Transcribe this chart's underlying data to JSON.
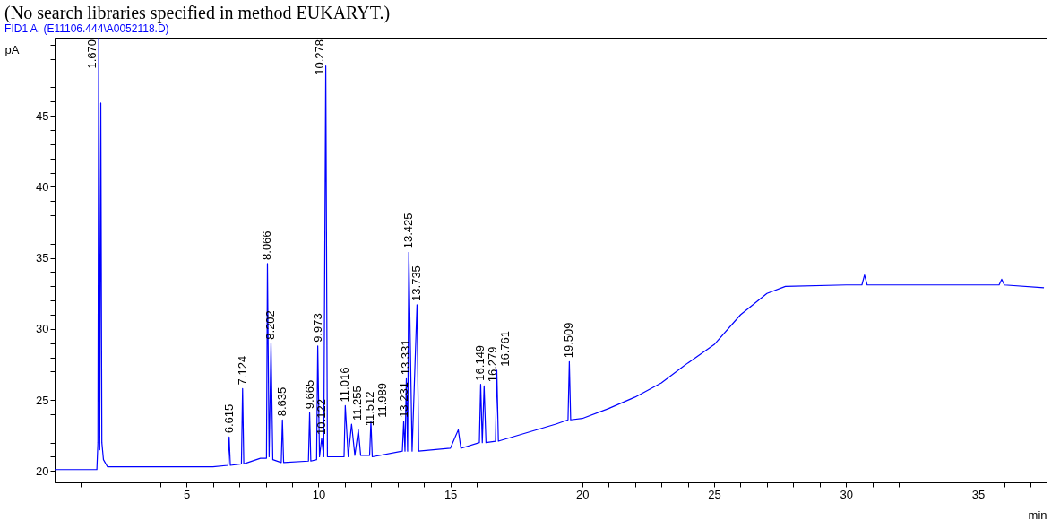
{
  "chart_data": {
    "type": "line",
    "title": "(No search libraries specified in method EUKARYT.)",
    "subtitle": "FID1 A,  (E11106.444\\A0052118.D)",
    "xlabel": "min",
    "ylabel": "pA",
    "x": [
      0,
      1.6,
      1.64,
      1.67,
      1.71,
      1.75,
      1.79,
      1.85,
      2.0,
      3.0,
      4.0,
      5.0,
      6.0,
      6.57,
      6.615,
      6.66,
      7.08,
      7.124,
      7.17,
      7.8,
      8.03,
      8.066,
      8.13,
      8.202,
      8.27,
      8.59,
      8.635,
      8.68,
      9.62,
      9.665,
      9.71,
      9.93,
      9.973,
      10.04,
      10.122,
      10.2,
      10.278,
      10.34,
      10.97,
      11.016,
      11.13,
      11.255,
      11.38,
      11.512,
      11.6,
      11.94,
      11.989,
      12.04,
      13.18,
      13.231,
      13.28,
      13.331,
      13.38,
      13.425,
      13.55,
      13.735,
      13.8,
      15.0,
      15.3,
      15.4,
      16.1,
      16.149,
      16.21,
      16.279,
      16.35,
      16.71,
      16.761,
      16.82,
      19.0,
      19.46,
      19.509,
      19.56,
      20.0,
      21.0,
      22.0,
      23.0,
      24.0,
      25.0,
      26.0,
      27.0,
      27.7,
      30.0,
      30.6,
      30.7,
      30.8,
      35.8,
      35.9,
      36.0,
      37.5
    ],
    "series": [
      {
        "color": "#0000ff",
        "values": [
          20.1,
          20.1,
          22.0,
          50.5,
          21.5,
          45.9,
          22.0,
          20.8,
          20.3,
          20.3,
          20.3,
          20.3,
          20.3,
          20.4,
          22.4,
          20.4,
          20.5,
          25.8,
          20.5,
          20.9,
          20.9,
          34.6,
          21.0,
          29.0,
          20.8,
          20.6,
          23.6,
          20.6,
          20.7,
          24.1,
          20.7,
          20.8,
          28.8,
          21.0,
          22.3,
          21.0,
          48.5,
          21.0,
          21.0,
          24.6,
          21.0,
          23.3,
          21.1,
          22.9,
          21.1,
          21.1,
          23.5,
          21.0,
          21.4,
          23.5,
          21.4,
          26.5,
          21.4,
          35.4,
          21.4,
          31.7,
          21.4,
          21.6,
          22.9,
          21.6,
          22.0,
          26.1,
          22.0,
          26.0,
          22.0,
          22.1,
          27.1,
          22.1,
          23.3,
          23.6,
          27.7,
          23.6,
          23.7,
          24.4,
          25.2,
          26.2,
          27.6,
          28.9,
          31.0,
          32.5,
          33.0,
          33.1,
          33.1,
          33.8,
          33.1,
          33.1,
          33.5,
          33.1,
          32.9
        ]
      }
    ],
    "xlim": [
      0,
      37.6
    ],
    "ylim": [
      19.2,
      50.5
    ],
    "xticks": [
      {
        "value": 1,
        "label": null
      },
      {
        "value": 2,
        "label": null
      },
      {
        "value": 3,
        "label": null
      },
      {
        "value": 4,
        "label": null
      },
      5,
      {
        "value": 6,
        "label": null
      },
      {
        "value": 7,
        "label": null
      },
      {
        "value": 8,
        "label": null
      },
      {
        "value": 9,
        "label": null
      },
      10,
      {
        "value": 11,
        "label": null
      },
      {
        "value": 12,
        "label": null
      },
      {
        "value": 13,
        "label": null
      },
      {
        "value": 14,
        "label": null
      },
      15,
      {
        "value": 16,
        "label": null
      },
      {
        "value": 17,
        "label": null
      },
      {
        "value": 18,
        "label": null
      },
      {
        "value": 19,
        "label": null
      },
      20,
      {
        "value": 21,
        "label": null
      },
      {
        "value": 22,
        "label": null
      },
      {
        "value": 23,
        "label": null
      },
      {
        "value": 24,
        "label": null
      },
      25,
      {
        "value": 26,
        "label": null
      },
      {
        "value": 27,
        "label": null
      },
      {
        "value": 28,
        "label": null
      },
      {
        "value": 29,
        "label": null
      },
      30,
      {
        "value": 31,
        "label": null
      },
      {
        "value": 32,
        "label": null
      },
      {
        "value": 33,
        "label": null
      },
      {
        "value": 34,
        "label": null
      },
      35,
      {
        "value": 36,
        "label": null
      },
      {
        "value": 37,
        "label": null
      }
    ],
    "yticks": [
      20,
      {
        "value": 21,
        "label": null
      },
      {
        "value": 22,
        "label": null
      },
      {
        "value": 23,
        "label": null
      },
      {
        "value": 24,
        "label": null
      },
      25,
      {
        "value": 26,
        "label": null
      },
      {
        "value": 27,
        "label": null
      },
      {
        "value": 28,
        "label": null
      },
      {
        "value": 29,
        "label": null
      },
      30,
      {
        "value": 31,
        "label": null
      },
      {
        "value": 32,
        "label": null
      },
      {
        "value": 33,
        "label": null
      },
      {
        "value": 34,
        "label": null
      },
      35,
      {
        "value": 36,
        "label": null
      },
      {
        "value": 37,
        "label": null
      },
      {
        "value": 38,
        "label": null
      },
      {
        "value": 39,
        "label": null
      },
      40,
      {
        "value": 41,
        "label": null
      },
      {
        "value": 42,
        "label": null
      },
      {
        "value": 43,
        "label": null
      },
      {
        "value": 44,
        "label": null
      },
      45,
      {
        "value": 46,
        "label": null
      },
      {
        "value": 47,
        "label": null
      },
      {
        "value": 48,
        "label": null
      },
      {
        "value": 49,
        "label": null
      },
      {
        "value": 50,
        "label": null
      }
    ],
    "grid": false,
    "marker": "none",
    "line_style": "solid",
    "annotations": [
      {
        "text": "1.670",
        "x": 1.67,
        "y": 50.5
      },
      {
        "text": "6.615",
        "x": 6.615,
        "y": 22.4
      },
      {
        "text": "7.124",
        "x": 7.124,
        "y": 25.8
      },
      {
        "text": "8.066",
        "x": 8.066,
        "y": 34.6
      },
      {
        "text": "8.202",
        "x": 8.202,
        "y": 29.0
      },
      {
        "text": "8.635",
        "x": 8.635,
        "y": 23.6
      },
      {
        "text": "9.665",
        "x": 9.665,
        "y": 24.1
      },
      {
        "text": "9.973",
        "x": 9.973,
        "y": 28.8
      },
      {
        "text": "10.122",
        "x": 10.122,
        "y": 22.3
      },
      {
        "text": "10.278",
        "x": 10.278,
        "y": 48.5
      },
      {
        "text": "11.016",
        "x": 11.016,
        "y": 24.6
      },
      {
        "text": "11.255",
        "x": 11.255,
        "y": 23.3
      },
      {
        "text": "11.512",
        "x": 11.512,
        "y": 22.9
      },
      {
        "text": "11.989",
        "x": 11.989,
        "y": 23.5
      },
      {
        "text": "13.231",
        "x": 13.231,
        "y": 23.5
      },
      {
        "text": "13.331",
        "x": 13.331,
        "y": 26.5
      },
      {
        "text": "13.425",
        "x": 13.425,
        "y": 35.4
      },
      {
        "text": "13.735",
        "x": 13.735,
        "y": 31.7
      },
      {
        "text": "16.149",
        "x": 16.149,
        "y": 26.1
      },
      {
        "text": "16.279",
        "x": 16.279,
        "y": 26.0
      },
      {
        "text": "16.761",
        "x": 16.761,
        "y": 27.1
      },
      {
        "text": "19.509",
        "x": 19.509,
        "y": 27.7
      }
    ]
  }
}
